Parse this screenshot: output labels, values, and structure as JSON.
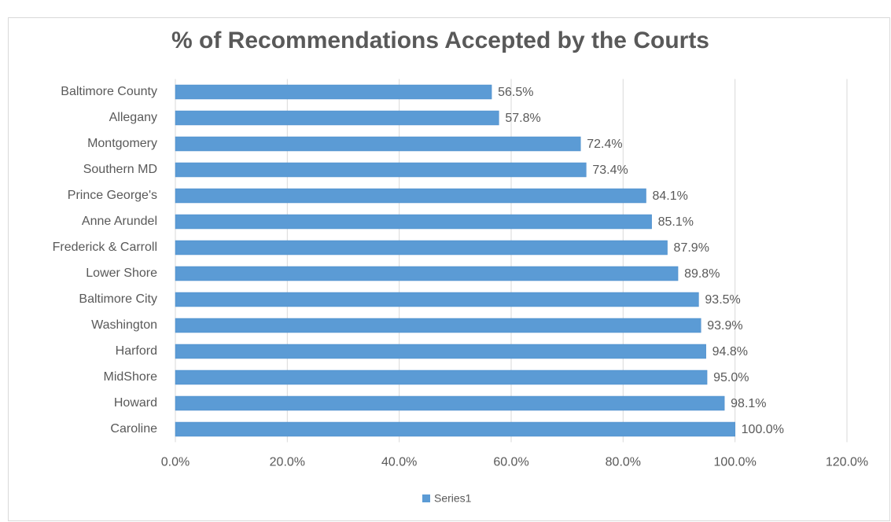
{
  "chart_data": {
    "type": "bar",
    "orientation": "horizontal",
    "title": "% of Recommendations Accepted by the Courts",
    "categories": [
      "Baltimore County",
      "Allegany",
      "Montgomery",
      "Southern MD",
      "Prince George's",
      "Anne Arundel",
      "Frederick & Carroll",
      "Lower Shore",
      "Baltimore City",
      "Washington",
      "Harford",
      "MidShore",
      "Howard",
      "Caroline"
    ],
    "values": [
      56.5,
      57.8,
      72.4,
      73.4,
      84.1,
      85.1,
      87.9,
      89.8,
      93.5,
      93.9,
      94.8,
      95.0,
      98.1,
      100.0
    ],
    "value_labels": [
      "56.5%",
      "57.8%",
      "72.4%",
      "73.4%",
      "84.1%",
      "85.1%",
      "87.9%",
      "89.8%",
      "93.5%",
      "93.9%",
      "94.8%",
      "95.0%",
      "98.1%",
      "100.0%"
    ],
    "series_name": "Series1",
    "color": "#5b9bd5",
    "xlim": [
      0,
      120
    ],
    "xticks": [
      {
        "value": 0,
        "label": "0.0%"
      },
      {
        "value": 20,
        "label": "20.0%"
      },
      {
        "value": 40,
        "label": "40.0%"
      },
      {
        "value": 60,
        "label": "60.0%"
      },
      {
        "value": 80,
        "label": "80.0%"
      },
      {
        "value": 100,
        "label": "100.0%"
      },
      {
        "value": 120,
        "label": "120.0%"
      }
    ],
    "grid": true,
    "legend": "bottom"
  }
}
